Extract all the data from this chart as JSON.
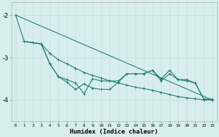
{
  "xlabel": "Humidex (Indice chaleur)",
  "bg_color": "#d8eeee",
  "line_color": "#1a7a6e",
  "grid_color": "#c8e0e0",
  "ylim": [
    -4.5,
    -1.7
  ],
  "xlim": [
    -0.5,
    23.5
  ],
  "yticks": [
    -4,
    -3,
    -2
  ],
  "xticks": [
    0,
    1,
    2,
    3,
    4,
    5,
    6,
    7,
    8,
    9,
    10,
    11,
    12,
    13,
    14,
    15,
    16,
    17,
    18,
    19,
    20,
    21,
    22,
    23
  ],
  "line1_x": [
    0,
    23
  ],
  "line1_y": [
    -2.0,
    -4.0
  ],
  "line2_x": [
    0,
    1,
    2,
    3,
    4,
    5,
    6,
    7,
    8,
    9,
    10,
    11,
    12,
    13,
    14,
    15,
    16,
    17,
    18,
    19,
    20,
    21,
    22,
    23
  ],
  "line2_y": [
    -2.0,
    -2.62,
    -2.65,
    -2.68,
    -2.9,
    -3.05,
    -3.15,
    -3.25,
    -3.35,
    -3.42,
    -3.48,
    -3.55,
    -3.6,
    -3.65,
    -3.7,
    -3.73,
    -3.77,
    -3.82,
    -3.87,
    -3.92,
    -3.95,
    -3.97,
    -4.0,
    -4.0
  ],
  "line3_x": [
    1,
    2,
    3,
    4,
    5,
    6,
    7,
    8,
    9,
    10,
    11,
    12,
    13,
    14,
    15,
    16,
    17,
    18,
    19,
    20,
    21,
    22,
    23
  ],
  "line3_y": [
    -2.62,
    -2.65,
    -2.68,
    -3.15,
    -3.45,
    -3.52,
    -3.6,
    -3.85,
    -3.5,
    -3.55,
    -3.55,
    -3.55,
    -3.38,
    -3.38,
    -3.38,
    -3.3,
    -3.5,
    -3.3,
    -3.52,
    -3.52,
    -3.6,
    -3.98,
    -3.98
  ],
  "line4_x": [
    1,
    2,
    3,
    4,
    5,
    6,
    7,
    8,
    9,
    10,
    11,
    12,
    13,
    14,
    15,
    16,
    17,
    18,
    19,
    20,
    21,
    22,
    23
  ],
  "line4_y": [
    -2.62,
    -2.65,
    -2.68,
    -3.15,
    -3.45,
    -3.58,
    -3.75,
    -3.62,
    -3.72,
    -3.75,
    -3.75,
    -3.58,
    -3.38,
    -3.38,
    -3.38,
    -3.3,
    -3.55,
    -3.38,
    -3.52,
    -3.55,
    -3.6,
    -3.98,
    -3.98
  ]
}
